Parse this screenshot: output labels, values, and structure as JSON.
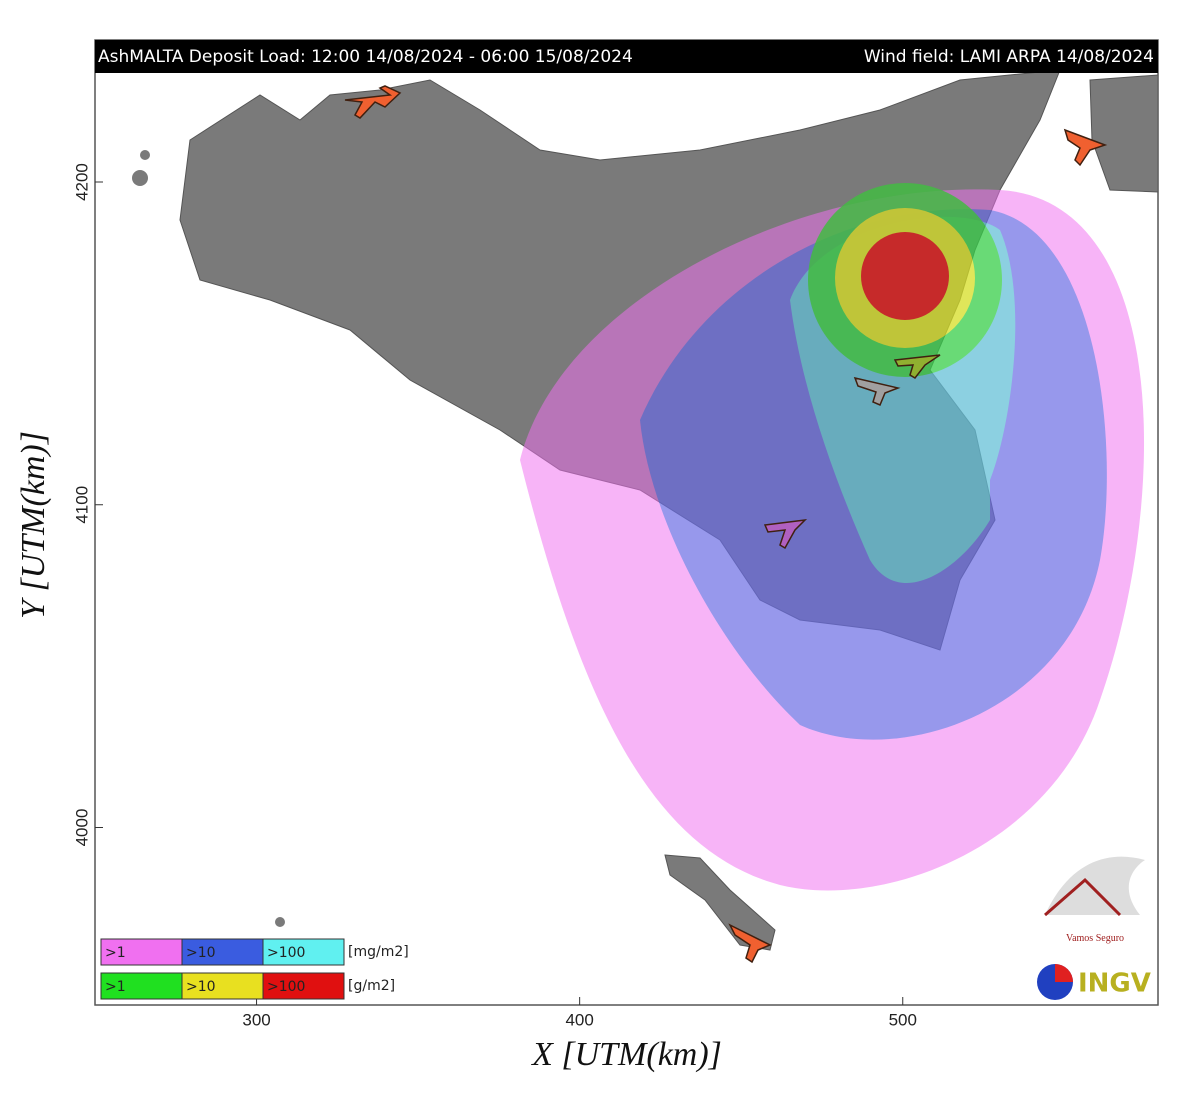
{
  "header": {
    "title": "AshMALTA Deposit Load: 12:00 14/08/2024 - 06:00 15/08/2024",
    "wind_field": "Wind field: LAMI ARPA 14/08/2024"
  },
  "axes": {
    "x_label": "X [UTM(km)]",
    "y_label": "Y [UTM(km)]",
    "xlim": [
      250,
      579
    ],
    "ylim": [
      3945,
      4244
    ],
    "xticks": [
      300,
      400,
      500
    ],
    "yticks": [
      4000,
      4100,
      4200
    ]
  },
  "legend": {
    "rows": [
      {
        "unit": "[mg/m2]",
        "items": [
          {
            "label": ">1",
            "color": "#f070f0"
          },
          {
            "label": ">10",
            "color": "#3a5ce0"
          },
          {
            "label": ">100",
            "color": "#60f0f0"
          }
        ]
      },
      {
        "unit": "[g/m2]",
        "items": [
          {
            "label": ">1",
            "color": "#20e020"
          },
          {
            "label": ">10",
            "color": "#e8e020"
          },
          {
            "label": ">100",
            "color": "#e01010"
          }
        ]
      }
    ]
  },
  "logos": {
    "vamos": "Vamos Seguro",
    "ingv": "INGV"
  }
}
